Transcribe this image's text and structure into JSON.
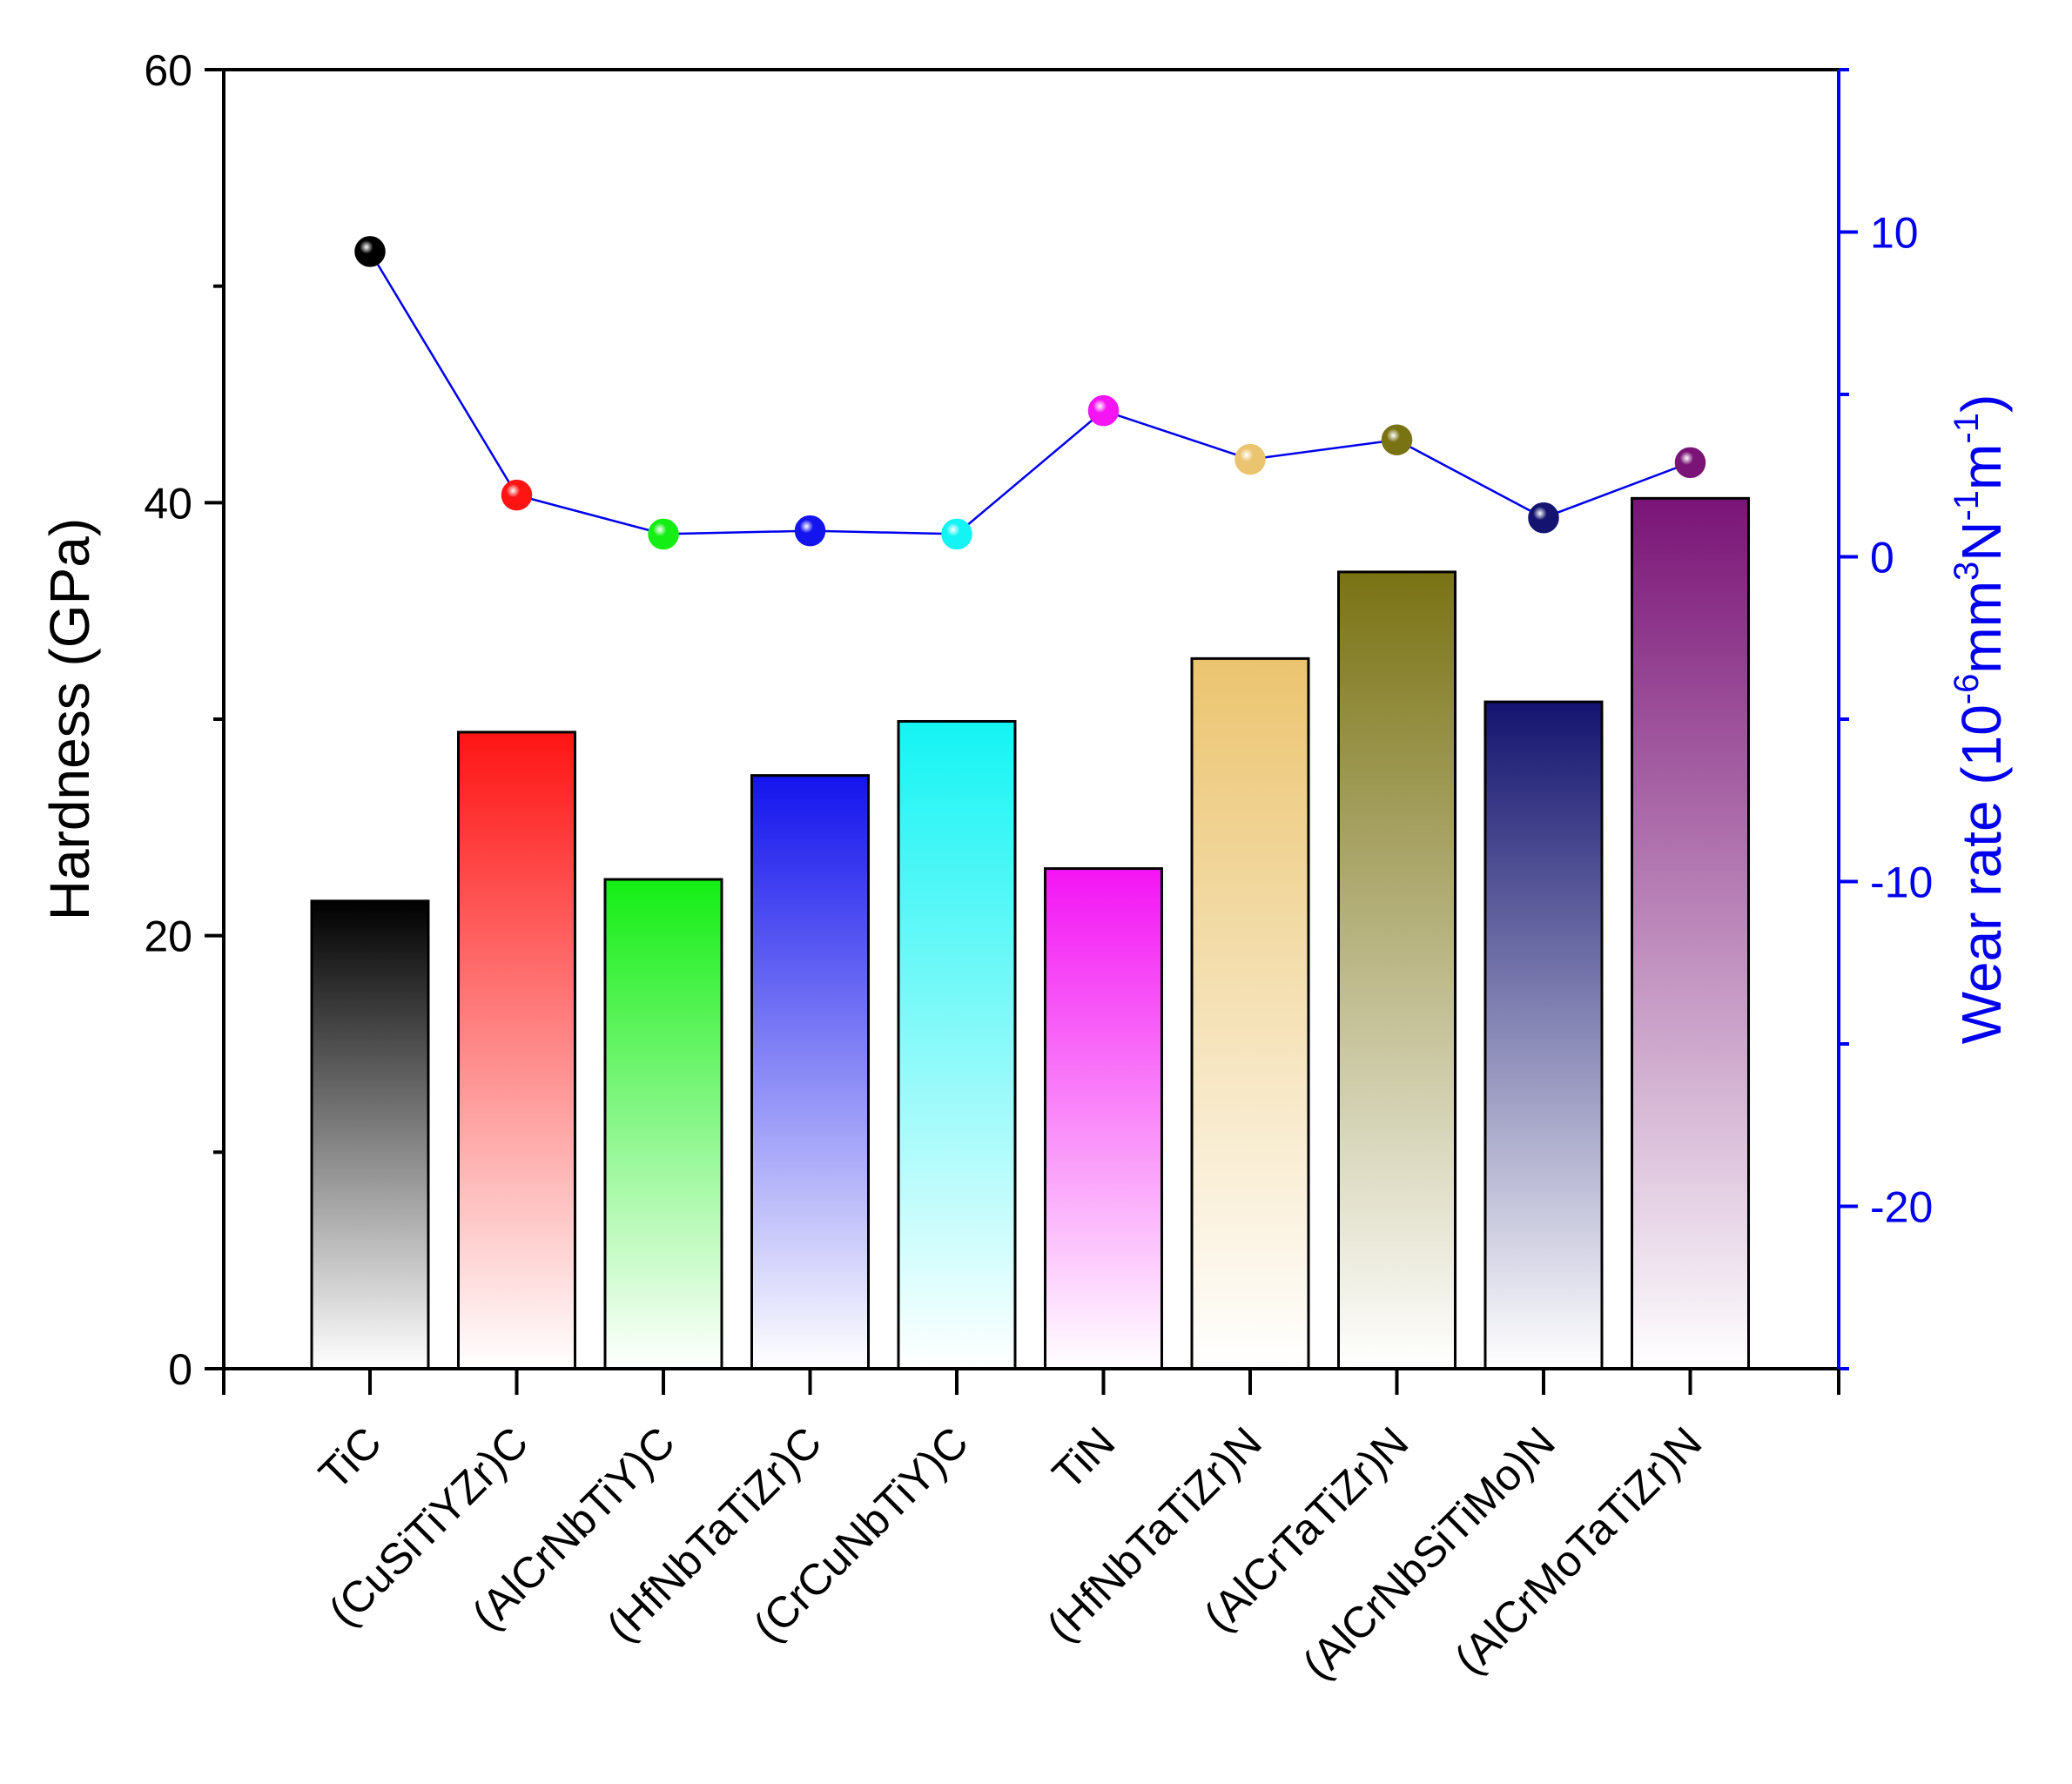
{
  "chart_data": {
    "type": "bar",
    "categories": [
      "TiC",
      "(CuSiTiYZr)C",
      "(AlCrNbTiY)C",
      "(HfNbTaTiZr)C",
      "(CrCuNbTiY)C",
      "TiN",
      "(HfNbTaTiZr)N",
      "(AlCrTaTiZr)N",
      "(AlCrNbSiTiMo)N",
      "(AlCrMoTaTiZr)N"
    ],
    "series": [
      {
        "kind": "bar",
        "axis": "left",
        "values": [
          21.6,
          29.4,
          22.6,
          27.4,
          29.9,
          23.1,
          32.8,
          36.8,
          30.8,
          40.2
        ]
      },
      {
        "kind": "line",
        "axis": "right",
        "values": [
          9.4,
          1.9,
          0.7,
          0.8,
          0.7,
          4.5,
          3.0,
          3.6,
          1.2,
          2.9
        ]
      }
    ],
    "bar_colors": [
      "#000000",
      "#ff1414",
      "#14ee14",
      "#1414ee",
      "#14f4f4",
      "#f414f4",
      "#ebc46f",
      "#7a7314",
      "#141470",
      "#7a1477"
    ],
    "line_color": "#0000ee",
    "y_left": {
      "label": "Hardness (GPa)",
      "range": [
        0,
        60
      ],
      "ticks": [
        "0",
        "20",
        "40",
        "60"
      ]
    },
    "y_right": {
      "label_main": "Wear rate (10",
      "label_parts": [
        "-6",
        "mm",
        "3",
        "N",
        "-1",
        "m",
        "-1",
        ")"
      ],
      "range": [
        -25,
        15
      ],
      "ticks": [
        "-20",
        "-10",
        "0",
        "10"
      ],
      "color": "#0000ee"
    },
    "grid": false,
    "legend": "none"
  }
}
